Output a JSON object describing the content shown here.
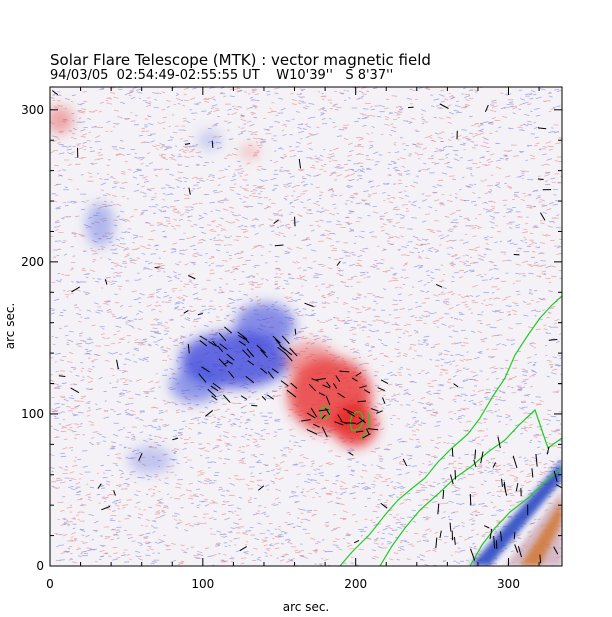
{
  "title": "Solar Flare Telescope (MTK) : vector magnetic field",
  "subtitle": {
    "date": "94/03/05",
    "time_range": "02:54:49-02:55:55 UT",
    "lon": "W10'39''",
    "lat": "S 8'37''"
  },
  "axes": {
    "xlabel": "arc sec.",
    "ylabel": "arc sec.",
    "xlim": [
      0,
      335
    ],
    "ylim": [
      0,
      315
    ],
    "xticks": [
      0,
      100,
      200,
      300
    ],
    "yticks": [
      0,
      100,
      200,
      300
    ]
  },
  "colors": {
    "positive_polarity": "#e03030",
    "negative_polarity": "#3040d8",
    "neutral_contour": "#22cc22",
    "limb_band": "#2040c0",
    "limb_edge": "#d07020",
    "vector": "#000000"
  }
}
